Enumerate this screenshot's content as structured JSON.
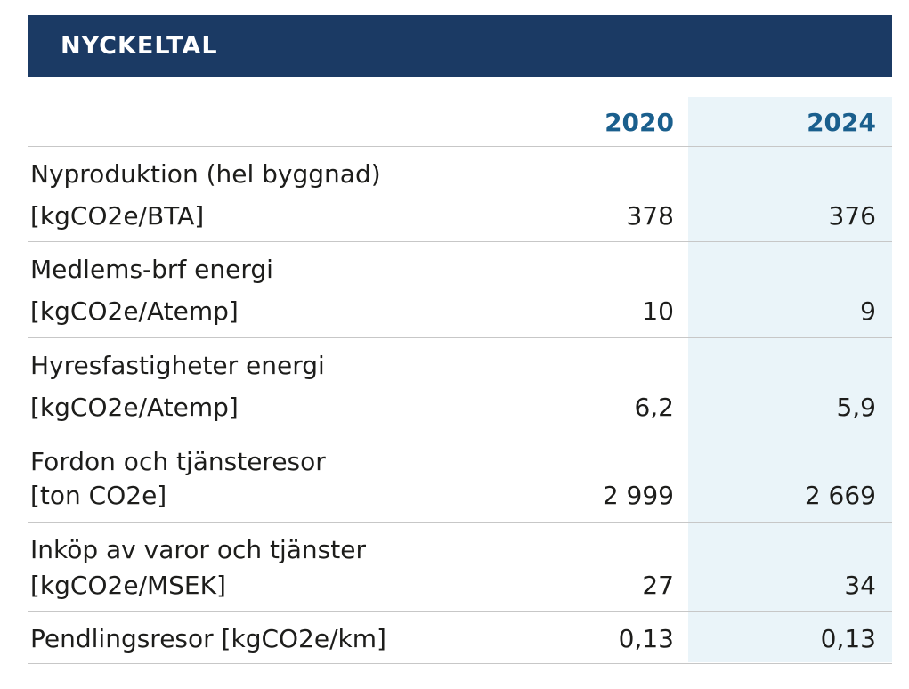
{
  "header": {
    "title": "NYCKELTAL"
  },
  "columns": [
    "2020",
    "2024"
  ],
  "rows": [
    {
      "line1": "Nyproduktion (hel byggnad)",
      "line2": "[kgCO2e/BTA]",
      "v2020": "378",
      "v2024": "376"
    },
    {
      "line1": "Medlems-brf energi",
      "line2": "[kgCO2e/Atemp]",
      "v2020": "10",
      "v2024": "9"
    },
    {
      "line1": "Hyresfastigheter energi",
      "line2": "[kgCO2e/Atemp]",
      "v2020": "6,2",
      "v2024": "5,9"
    },
    {
      "line1": "Fordon och tjänsteresor",
      "line2": "[ton CO2e]",
      "v2020": "2 999",
      "v2024": "2 669"
    },
    {
      "line1": "Inköp av varor och tjänster",
      "line2": "[kgCO2e/MSEK]",
      "v2020": "27",
      "v2024": "34"
    },
    {
      "line1": "Pendlingsresor [kgCO2e/km]",
      "v2020": "0,13",
      "v2024": "0,13"
    }
  ],
  "colors": {
    "header_bg": "#1b3a64",
    "year_text": "#1a5f8d",
    "column_shade": "#eaf4f9"
  }
}
